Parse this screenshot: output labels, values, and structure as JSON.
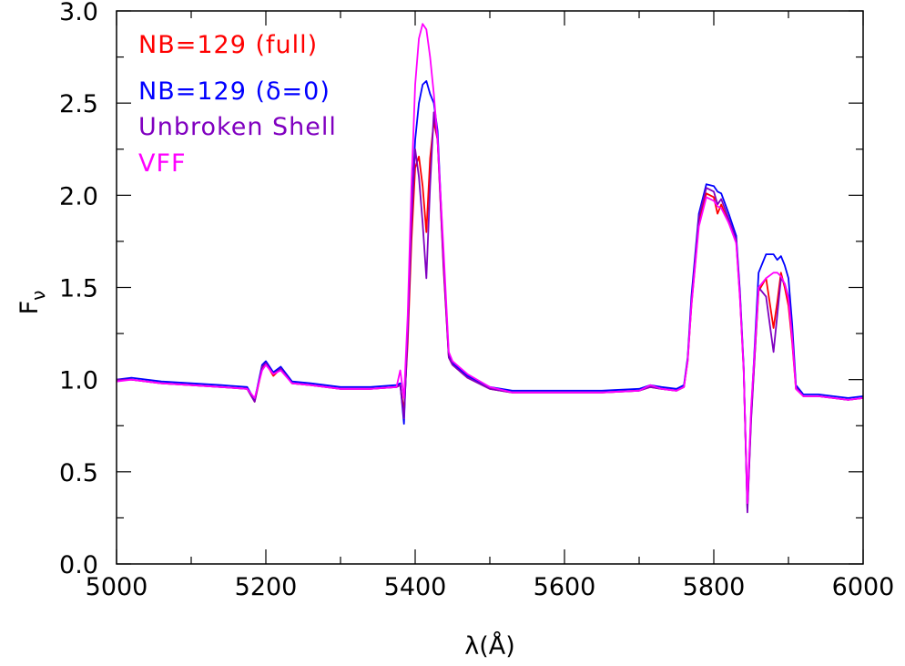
{
  "chart_data": {
    "type": "line",
    "title": "",
    "xlabel": "λ(Å)",
    "ylabel_main": "F",
    "ylabel_sub": "ν",
    "xlim": [
      5000,
      6000
    ],
    "ylim": [
      0.0,
      3.0
    ],
    "x_major_ticks": [
      5000,
      5200,
      5400,
      5600,
      5800,
      6000
    ],
    "x_tick_labels": [
      "5000",
      "5200",
      "5400",
      "5600",
      "5800",
      "6000"
    ],
    "x_minor_step": 100,
    "y_major_ticks": [
      0.0,
      0.5,
      1.0,
      1.5,
      2.0,
      2.5,
      3.0
    ],
    "y_tick_labels": [
      "0.0",
      "0.5",
      "1.0",
      "1.5",
      "2.0",
      "2.5",
      "3.0"
    ],
    "y_minor_step": 0.25,
    "grid": false,
    "legend_position": "top-left",
    "series": [
      {
        "name": "NB=129 (full)",
        "color": "#ff0000",
        "x": [
          5000,
          5020,
          5060,
          5100,
          5140,
          5175,
          5185,
          5195,
          5200,
          5210,
          5220,
          5235,
          5260,
          5300,
          5340,
          5375,
          5380,
          5385,
          5390,
          5395,
          5400,
          5405,
          5410,
          5415,
          5420,
          5425,
          5430,
          5438,
          5445,
          5450,
          5470,
          5500,
          5530,
          5560,
          5600,
          5650,
          5700,
          5715,
          5730,
          5750,
          5760,
          5765,
          5770,
          5780,
          5790,
          5800,
          5805,
          5810,
          5820,
          5830,
          5835,
          5840,
          5845,
          5850,
          5860,
          5870,
          5880,
          5885,
          5890,
          5895,
          5900,
          5905,
          5910,
          5920,
          5940,
          5960,
          5980,
          6000
        ],
        "y": [
          1.0,
          1.0,
          0.98,
          0.97,
          0.96,
          0.95,
          0.88,
          1.06,
          1.09,
          1.02,
          1.06,
          0.98,
          0.97,
          0.95,
          0.95,
          0.96,
          0.97,
          0.83,
          1.2,
          1.75,
          2.15,
          2.21,
          2.05,
          1.8,
          2.2,
          2.4,
          2.3,
          1.6,
          1.12,
          1.08,
          1.01,
          0.95,
          0.93,
          0.93,
          0.93,
          0.93,
          0.94,
          0.96,
          0.95,
          0.94,
          0.96,
          1.1,
          1.4,
          1.85,
          2.01,
          1.99,
          1.9,
          1.95,
          1.85,
          1.75,
          1.45,
          1.05,
          0.3,
          0.8,
          1.48,
          1.55,
          1.28,
          1.42,
          1.58,
          1.5,
          1.4,
          1.2,
          0.95,
          0.91,
          0.91,
          0.9,
          0.89,
          0.9
        ]
      },
      {
        "name": "NB=129 (δ=0)",
        "color": "#0000ff",
        "x": [
          5000,
          5020,
          5060,
          5100,
          5140,
          5175,
          5185,
          5195,
          5200,
          5210,
          5220,
          5235,
          5260,
          5300,
          5340,
          5375,
          5380,
          5385,
          5390,
          5395,
          5400,
          5405,
          5410,
          5415,
          5420,
          5425,
          5430,
          5438,
          5445,
          5450,
          5470,
          5500,
          5530,
          5560,
          5600,
          5650,
          5700,
          5715,
          5730,
          5750,
          5760,
          5765,
          5770,
          5780,
          5790,
          5800,
          5805,
          5810,
          5820,
          5830,
          5835,
          5840,
          5845,
          5850,
          5860,
          5870,
          5880,
          5885,
          5890,
          5895,
          5900,
          5905,
          5910,
          5920,
          5940,
          5960,
          5980,
          6000
        ],
        "y": [
          1.0,
          1.01,
          0.99,
          0.98,
          0.97,
          0.96,
          0.89,
          1.08,
          1.1,
          1.04,
          1.07,
          0.99,
          0.98,
          0.96,
          0.96,
          0.97,
          0.98,
          0.76,
          1.3,
          1.9,
          2.3,
          2.5,
          2.6,
          2.62,
          2.55,
          2.5,
          2.35,
          1.65,
          1.13,
          1.09,
          1.02,
          0.96,
          0.94,
          0.94,
          0.94,
          0.94,
          0.95,
          0.97,
          0.96,
          0.95,
          0.97,
          1.12,
          1.45,
          1.9,
          2.06,
          2.05,
          2.02,
          2.01,
          1.9,
          1.78,
          1.48,
          1.07,
          0.3,
          0.82,
          1.58,
          1.68,
          1.68,
          1.65,
          1.67,
          1.62,
          1.55,
          1.3,
          0.97,
          0.92,
          0.92,
          0.91,
          0.9,
          0.91
        ]
      },
      {
        "name": "Unbroken Shell",
        "color": "#8000c0",
        "x": [
          5000,
          5020,
          5060,
          5100,
          5140,
          5175,
          5185,
          5195,
          5200,
          5210,
          5220,
          5235,
          5260,
          5300,
          5340,
          5375,
          5380,
          5385,
          5390,
          5395,
          5400,
          5405,
          5410,
          5415,
          5420,
          5425,
          5430,
          5438,
          5445,
          5450,
          5470,
          5500,
          5530,
          5560,
          5600,
          5650,
          5700,
          5715,
          5730,
          5750,
          5760,
          5765,
          5770,
          5780,
          5790,
          5800,
          5805,
          5810,
          5820,
          5830,
          5835,
          5840,
          5845,
          5850,
          5860,
          5870,
          5880,
          5885,
          5890,
          5895,
          5900,
          5905,
          5910,
          5920,
          5940,
          5960,
          5980,
          6000
        ],
        "y": [
          1.0,
          1.0,
          0.98,
          0.97,
          0.96,
          0.95,
          0.88,
          1.07,
          1.09,
          1.03,
          1.06,
          0.98,
          0.97,
          0.95,
          0.95,
          0.96,
          0.97,
          0.79,
          1.25,
          1.85,
          2.25,
          2.1,
          1.85,
          1.55,
          2.05,
          2.45,
          2.3,
          1.62,
          1.12,
          1.08,
          1.01,
          0.95,
          0.93,
          0.93,
          0.93,
          0.93,
          0.94,
          0.96,
          0.95,
          0.94,
          0.96,
          1.11,
          1.42,
          1.88,
          2.04,
          2.02,
          1.95,
          1.98,
          1.87,
          1.76,
          1.46,
          1.06,
          0.28,
          0.78,
          1.5,
          1.45,
          1.15,
          1.35,
          1.55,
          1.52,
          1.45,
          1.25,
          0.96,
          0.91,
          0.91,
          0.9,
          0.89,
          0.9
        ]
      },
      {
        "name": "VFF",
        "color": "#ff00ff",
        "x": [
          5000,
          5020,
          5060,
          5100,
          5140,
          5175,
          5185,
          5195,
          5200,
          5210,
          5220,
          5235,
          5260,
          5300,
          5340,
          5375,
          5380,
          5385,
          5390,
          5395,
          5400,
          5405,
          5410,
          5415,
          5420,
          5425,
          5430,
          5438,
          5445,
          5450,
          5470,
          5500,
          5530,
          5560,
          5600,
          5650,
          5700,
          5715,
          5730,
          5750,
          5760,
          5765,
          5770,
          5780,
          5790,
          5800,
          5805,
          5810,
          5820,
          5830,
          5835,
          5840,
          5845,
          5850,
          5860,
          5870,
          5880,
          5885,
          5890,
          5895,
          5900,
          5905,
          5910,
          5920,
          5940,
          5960,
          5980,
          6000
        ],
        "y": [
          0.99,
          1.0,
          0.98,
          0.97,
          0.96,
          0.95,
          0.9,
          1.05,
          1.08,
          1.03,
          1.05,
          0.98,
          0.97,
          0.95,
          0.95,
          0.96,
          1.05,
          0.9,
          1.35,
          2.05,
          2.6,
          2.85,
          2.93,
          2.9,
          2.75,
          2.55,
          2.3,
          1.7,
          1.15,
          1.1,
          1.03,
          0.96,
          0.93,
          0.93,
          0.93,
          0.93,
          0.94,
          0.97,
          0.95,
          0.94,
          0.96,
          1.1,
          1.4,
          1.83,
          1.99,
          1.97,
          1.94,
          1.93,
          1.85,
          1.74,
          1.44,
          1.05,
          0.33,
          0.85,
          1.5,
          1.55,
          1.58,
          1.58,
          1.56,
          1.52,
          1.44,
          1.22,
          0.95,
          0.91,
          0.91,
          0.9,
          0.89,
          0.9
        ]
      }
    ]
  }
}
